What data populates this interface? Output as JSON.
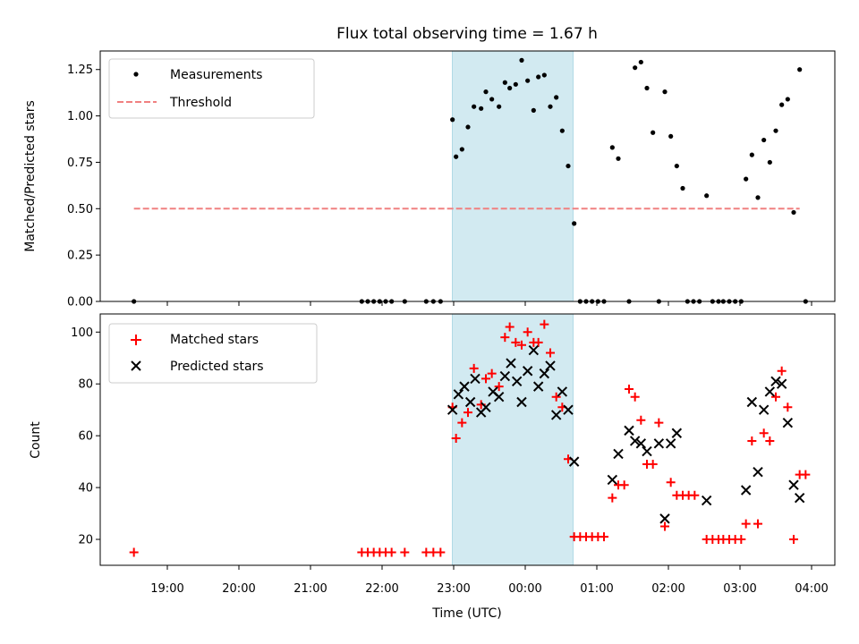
{
  "chart_data": {
    "type": "scatter",
    "title": "Flux total observing time = 1.67 h",
    "xlabel": "Time (UTC)",
    "x_tick_labels": [
      "19:00",
      "20:00",
      "21:00",
      "22:00",
      "23:00",
      "00:00",
      "01:00",
      "02:00",
      "03:00",
      "04:00"
    ],
    "highlight_interval": [
      "22:59",
      "00:40"
    ],
    "highlight_color": "#add8e6",
    "panels": [
      {
        "ylabel": "Matched/Predicted stars",
        "ylim": [
          0,
          1.35
        ],
        "y_tick_labels": [
          "0.00",
          "0.25",
          "0.50",
          "0.75",
          "1.00",
          "1.25"
        ],
        "legend": "top-left",
        "series": [
          {
            "name": "Measurements",
            "marker": "dot",
            "color": "#000000",
            "points": [
              [
                "18:32",
                0.0
              ],
              [
                "21:43",
                0.0
              ],
              [
                "21:48",
                0.0
              ],
              [
                "21:53",
                0.0
              ],
              [
                "21:58",
                0.0
              ],
              [
                "22:03",
                0.0
              ],
              [
                "22:08",
                0.0
              ],
              [
                "22:19",
                0.0
              ],
              [
                "22:37",
                0.0
              ],
              [
                "22:43",
                0.0
              ],
              [
                "22:49",
                0.0
              ],
              [
                "22:59",
                0.98
              ],
              [
                "23:02",
                0.78
              ],
              [
                "23:07",
                0.82
              ],
              [
                "23:12",
                0.94
              ],
              [
                "23:17",
                1.05
              ],
              [
                "23:23",
                1.04
              ],
              [
                "23:27",
                1.13
              ],
              [
                "23:32",
                1.09
              ],
              [
                "23:38",
                1.05
              ],
              [
                "23:43",
                1.18
              ],
              [
                "23:47",
                1.15
              ],
              [
                "23:52",
                1.17
              ],
              [
                "23:57",
                1.3
              ],
              [
                "00:02",
                1.19
              ],
              [
                "00:07",
                1.03
              ],
              [
                "00:11",
                1.21
              ],
              [
                "00:16",
                1.22
              ],
              [
                "00:21",
                1.05
              ],
              [
                "00:26",
                1.1
              ],
              [
                "00:31",
                0.92
              ],
              [
                "00:36",
                0.73
              ],
              [
                "00:41",
                0.42
              ],
              [
                "00:46",
                0.0
              ],
              [
                "00:51",
                0.0
              ],
              [
                "00:56",
                0.0
              ],
              [
                "01:01",
                0.0
              ],
              [
                "01:06",
                0.0
              ],
              [
                "01:13",
                0.83
              ],
              [
                "01:18",
                0.77
              ],
              [
                "01:27",
                0.0
              ],
              [
                "01:32",
                1.26
              ],
              [
                "01:37",
                1.29
              ],
              [
                "01:42",
                1.15
              ],
              [
                "01:47",
                0.91
              ],
              [
                "01:52",
                0.0
              ],
              [
                "01:57",
                1.13
              ],
              [
                "02:02",
                0.89
              ],
              [
                "02:07",
                0.73
              ],
              [
                "02:12",
                0.61
              ],
              [
                "02:16",
                0.0
              ],
              [
                "02:21",
                0.0
              ],
              [
                "02:26",
                0.0
              ],
              [
                "02:32",
                0.57
              ],
              [
                "02:37",
                0.0
              ],
              [
                "02:42",
                0.0
              ],
              [
                "02:46",
                0.0
              ],
              [
                "02:51",
                0.0
              ],
              [
                "02:56",
                0.0
              ],
              [
                "03:01",
                0.0
              ],
              [
                "03:05",
                0.66
              ],
              [
                "03:10",
                0.79
              ],
              [
                "03:15",
                0.56
              ],
              [
                "03:20",
                0.87
              ],
              [
                "03:25",
                0.75
              ],
              [
                "03:30",
                0.92
              ],
              [
                "03:35",
                1.06
              ],
              [
                "03:40",
                1.09
              ],
              [
                "03:45",
                0.48
              ],
              [
                "03:50",
                1.25
              ],
              [
                "03:55",
                0.0
              ]
            ]
          },
          {
            "name": "Threshold",
            "marker": "dashed-line",
            "color": "#f08080",
            "points": [
              [
                "18:32",
                0.5
              ],
              [
                "03:50",
                0.5
              ]
            ]
          }
        ]
      },
      {
        "ylabel": "Count",
        "ylim": [
          10,
          107
        ],
        "y_tick_labels": [
          "20",
          "40",
          "60",
          "80",
          "100"
        ],
        "legend": "top-left",
        "series": [
          {
            "name": "Matched stars",
            "marker": "plus",
            "color": "#ff0000",
            "points": [
              [
                "18:32",
                15
              ],
              [
                "21:43",
                15
              ],
              [
                "21:48",
                15
              ],
              [
                "21:53",
                15
              ],
              [
                "21:58",
                15
              ],
              [
                "22:03",
                15
              ],
              [
                "22:08",
                15
              ],
              [
                "22:19",
                15
              ],
              [
                "22:37",
                15
              ],
              [
                "22:43",
                15
              ],
              [
                "22:49",
                15
              ],
              [
                "22:59",
                71
              ],
              [
                "23:02",
                59
              ],
              [
                "23:07",
                65
              ],
              [
                "23:12",
                69
              ],
              [
                "23:17",
                86
              ],
              [
                "23:23",
                72
              ],
              [
                "23:27",
                82
              ],
              [
                "23:32",
                84
              ],
              [
                "23:38",
                79
              ],
              [
                "23:43",
                98
              ],
              [
                "23:47",
                102
              ],
              [
                "23:52",
                96
              ],
              [
                "23:57",
                95
              ],
              [
                "00:02",
                100
              ],
              [
                "00:07",
                96
              ],
              [
                "00:11",
                96
              ],
              [
                "00:16",
                103
              ],
              [
                "00:21",
                92
              ],
              [
                "00:26",
                75
              ],
              [
                "00:31",
                71
              ],
              [
                "00:36",
                51
              ],
              [
                "00:41",
                21
              ],
              [
                "00:46",
                21
              ],
              [
                "00:51",
                21
              ],
              [
                "00:56",
                21
              ],
              [
                "01:01",
                21
              ],
              [
                "01:06",
                21
              ],
              [
                "01:13",
                36
              ],
              [
                "01:18",
                41
              ],
              [
                "01:23",
                41
              ],
              [
                "01:27",
                78
              ],
              [
                "01:32",
                75
              ],
              [
                "01:37",
                66
              ],
              [
                "01:42",
                49
              ],
              [
                "01:47",
                49
              ],
              [
                "01:52",
                65
              ],
              [
                "01:57",
                25
              ],
              [
                "02:02",
                42
              ],
              [
                "02:07",
                37
              ],
              [
                "02:12",
                37
              ],
              [
                "02:17",
                37
              ],
              [
                "02:22",
                37
              ],
              [
                "02:32",
                20
              ],
              [
                "02:37",
                20
              ],
              [
                "02:42",
                20
              ],
              [
                "02:46",
                20
              ],
              [
                "02:51",
                20
              ],
              [
                "02:56",
                20
              ],
              [
                "03:01",
                20
              ],
              [
                "03:05",
                26
              ],
              [
                "03:10",
                58
              ],
              [
                "03:15",
                26
              ],
              [
                "03:20",
                61
              ],
              [
                "03:25",
                58
              ],
              [
                "03:30",
                75
              ],
              [
                "03:35",
                85
              ],
              [
                "03:40",
                71
              ],
              [
                "03:45",
                20
              ],
              [
                "03:50",
                45
              ],
              [
                "03:55",
                45
              ]
            ]
          },
          {
            "name": "Predicted stars",
            "marker": "x",
            "color": "#000000",
            "points": [
              [
                "22:59",
                70
              ],
              [
                "23:04",
                76
              ],
              [
                "23:09",
                79
              ],
              [
                "23:14",
                73
              ],
              [
                "23:18",
                82
              ],
              [
                "23:23",
                69
              ],
              [
                "23:27",
                71
              ],
              [
                "23:33",
                77
              ],
              [
                "23:38",
                75
              ],
              [
                "23:43",
                83
              ],
              [
                "23:48",
                88
              ],
              [
                "23:53",
                81
              ],
              [
                "23:57",
                73
              ],
              [
                "00:02",
                85
              ],
              [
                "00:07",
                93
              ],
              [
                "00:11",
                79
              ],
              [
                "00:16",
                84
              ],
              [
                "00:21",
                87
              ],
              [
                "00:26",
                68
              ],
              [
                "00:31",
                77
              ],
              [
                "00:36",
                70
              ],
              [
                "00:41",
                50
              ],
              [
                "01:13",
                43
              ],
              [
                "01:18",
                53
              ],
              [
                "01:27",
                62
              ],
              [
                "01:32",
                58
              ],
              [
                "01:37",
                57
              ],
              [
                "01:42",
                54
              ],
              [
                "01:52",
                57
              ],
              [
                "01:57",
                28
              ],
              [
                "02:02",
                57
              ],
              [
                "02:07",
                61
              ],
              [
                "02:32",
                35
              ],
              [
                "03:05",
                39
              ],
              [
                "03:10",
                73
              ],
              [
                "03:15",
                46
              ],
              [
                "03:20",
                70
              ],
              [
                "03:25",
                77
              ],
              [
                "03:30",
                81
              ],
              [
                "03:35",
                80
              ],
              [
                "03:40",
                65
              ],
              [
                "03:45",
                41
              ],
              [
                "03:50",
                36
              ]
            ]
          }
        ]
      }
    ]
  }
}
